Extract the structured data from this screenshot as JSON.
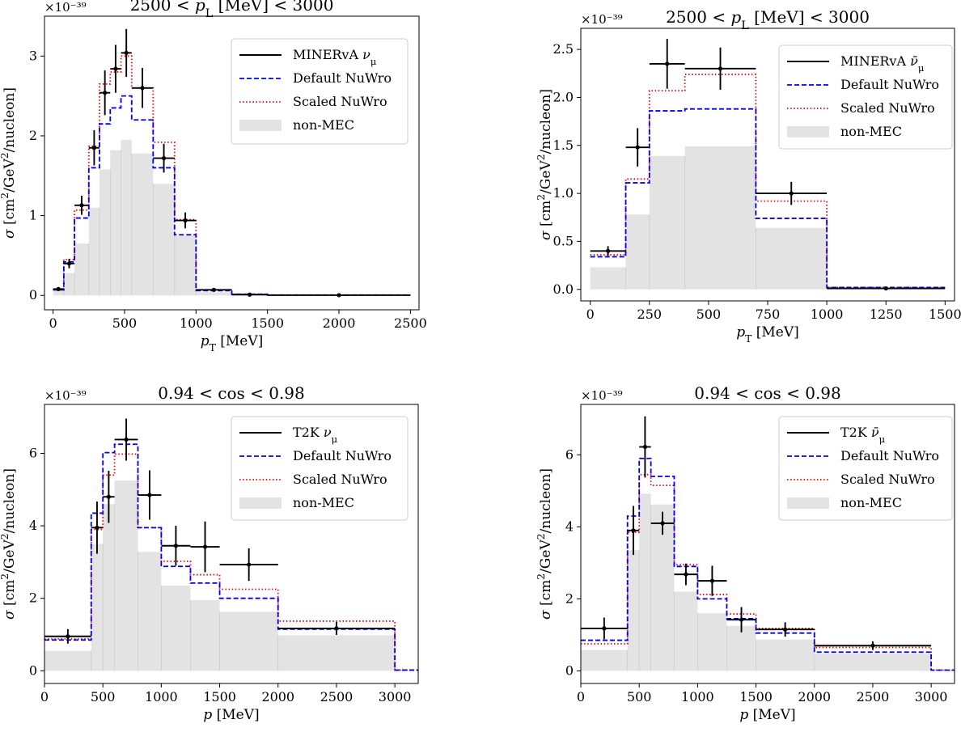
{
  "chart_data": [
    {
      "type": "step",
      "title": "2500 < p_L [MeV] < 3000",
      "xlabel": "p_T [MeV]",
      "ylabel": "σ [cm²/GeV²/nucleon]",
      "offset_text": "×10⁻³⁹",
      "xlim": [
        -60,
        2560
      ],
      "ylim": [
        -0.18,
        3.5
      ],
      "xticks": [
        0,
        500,
        1000,
        1500,
        2000,
        2500
      ],
      "xtick_labels": [
        "0",
        "500",
        "1000",
        "1500",
        "2000",
        "2500"
      ],
      "yticks": [
        0,
        1,
        2,
        3
      ],
      "ytick_labels": [
        "0",
        "1",
        "2",
        "3"
      ],
      "legend_location": "upper right",
      "legend": [
        {
          "label": "MINERvA ν_μ",
          "style": "data"
        },
        {
          "label": "Default NuWro",
          "style": "dashed"
        },
        {
          "label": "Scaled NuWro",
          "style": "dotted"
        },
        {
          "label": "non-MEC",
          "style": "fill"
        }
      ],
      "bin_edges": [
        0,
        75,
        150,
        250,
        325,
        400,
        475,
        550,
        700,
        850,
        1000,
        1250,
        1500,
        2500
      ],
      "series": [
        {
          "name": "non-MEC",
          "values": [
            0.06,
            0.28,
            0.65,
            1.1,
            1.58,
            1.82,
            1.95,
            1.78,
            1.4,
            0.75,
            0.04,
            0.01,
            0.0
          ]
        },
        {
          "name": "Default NuWro",
          "values": [
            0.07,
            0.42,
            0.97,
            1.6,
            2.15,
            2.35,
            2.5,
            2.2,
            1.6,
            0.76,
            0.06,
            0.015,
            0.005
          ]
        },
        {
          "name": "Scaled NuWro",
          "values": [
            0.07,
            0.45,
            1.07,
            1.87,
            2.65,
            2.8,
            3.0,
            2.6,
            1.92,
            0.95,
            0.07,
            0.015,
            0.005
          ]
        }
      ],
      "data_points": [
        {
          "x": 37.5,
          "y": 0.08,
          "xerr": 37.5,
          "yerr": 0.02
        },
        {
          "x": 112.5,
          "y": 0.4,
          "xerr": 37.5,
          "yerr": 0.06
        },
        {
          "x": 200,
          "y": 1.13,
          "xerr": 50,
          "yerr": 0.12
        },
        {
          "x": 287.5,
          "y": 1.85,
          "xerr": 37.5,
          "yerr": 0.22
        },
        {
          "x": 362.5,
          "y": 2.54,
          "xerr": 37.5,
          "yerr": 0.28
        },
        {
          "x": 437.5,
          "y": 2.84,
          "xerr": 37.5,
          "yerr": 0.3
        },
        {
          "x": 512.5,
          "y": 3.04,
          "xerr": 37.5,
          "yerr": 0.3
        },
        {
          "x": 625,
          "y": 2.6,
          "xerr": 75,
          "yerr": 0.25
        },
        {
          "x": 775,
          "y": 1.72,
          "xerr": 75,
          "yerr": 0.18
        },
        {
          "x": 925,
          "y": 0.94,
          "xerr": 75,
          "yerr": 0.1
        },
        {
          "x": 1125,
          "y": 0.07,
          "xerr": 125,
          "yerr": 0.02
        },
        {
          "x": 1375,
          "y": 0.01,
          "xerr": 125,
          "yerr": 0.01
        },
        {
          "x": 2000,
          "y": 0.003,
          "xerr": 500,
          "yerr": 0.005
        }
      ]
    },
    {
      "type": "step",
      "title": "2500 < p_L [MeV] < 3000",
      "xlabel": "p_T [MeV]",
      "ylabel": "σ [cm²/GeV²/nucleon]",
      "offset_text": "×10⁻³⁹",
      "xlim": [
        -40,
        1540
      ],
      "ylim": [
        -0.12,
        2.72
      ],
      "xticks": [
        0,
        250,
        500,
        750,
        1000,
        1250,
        1500
      ],
      "xtick_labels": [
        "0",
        "250",
        "500",
        "750",
        "1000",
        "1250",
        "1500"
      ],
      "yticks": [
        0,
        0.5,
        1,
        1.5,
        2,
        2.5
      ],
      "ytick_labels": [
        "0.0",
        "0.5",
        "1.0",
        "1.5",
        "2.0",
        "2.5"
      ],
      "legend_location": "upper right",
      "legend": [
        {
          "label": "MINERvA ν̄_μ",
          "style": "data"
        },
        {
          "label": "Default NuWro",
          "style": "dashed"
        },
        {
          "label": "Scaled NuWro",
          "style": "dotted"
        },
        {
          "label": "non-MEC",
          "style": "fill"
        }
      ],
      "bin_edges": [
        0,
        150,
        250,
        400,
        700,
        1000,
        1500
      ],
      "series": [
        {
          "name": "non-MEC",
          "values": [
            0.23,
            0.78,
            1.39,
            1.49,
            0.64,
            0.01
          ]
        },
        {
          "name": "Default NuWro",
          "values": [
            0.34,
            1.11,
            1.86,
            1.88,
            0.74,
            0.02
          ]
        },
        {
          "name": "Scaled NuWro",
          "values": [
            0.36,
            1.15,
            2.07,
            2.24,
            0.92,
            0.02
          ]
        }
      ],
      "data_points": [
        {
          "x": 75,
          "y": 0.4,
          "xerr": 75,
          "yerr": 0.05
        },
        {
          "x": 200,
          "y": 1.48,
          "xerr": 50,
          "yerr": 0.2
        },
        {
          "x": 325,
          "y": 2.35,
          "xerr": 75,
          "yerr": 0.26
        },
        {
          "x": 550,
          "y": 2.3,
          "xerr": 150,
          "yerr": 0.22
        },
        {
          "x": 850,
          "y": 1.0,
          "xerr": 150,
          "yerr": 0.12
        },
        {
          "x": 1250,
          "y": 0.01,
          "xerr": 250,
          "yerr": 0.005
        }
      ]
    },
    {
      "type": "step",
      "title": "0.94 < cos < 0.98",
      "xlabel": "p [MeV]",
      "ylabel": "σ [cm²/GeV²/nucleon]",
      "offset_text": "×10⁻³⁹",
      "xlim": [
        0,
        3200
      ],
      "ylim": [
        -0.35,
        7.35
      ],
      "xticks": [
        0,
        500,
        1000,
        1500,
        2000,
        2500,
        3000
      ],
      "xtick_labels": [
        "0",
        "500",
        "1000",
        "1500",
        "2000",
        "2500",
        "3000"
      ],
      "yticks": [
        0,
        2,
        4,
        6
      ],
      "ytick_labels": [
        "0",
        "2",
        "4",
        "6"
      ],
      "legend_location": "upper right",
      "legend": [
        {
          "label": "T2K ν_μ",
          "style": "data"
        },
        {
          "label": "Default NuWro",
          "style": "dashed"
        },
        {
          "label": "Scaled NuWro",
          "style": "dotted"
        },
        {
          "label": "non-MEC",
          "style": "fill"
        }
      ],
      "bin_edges": [
        0,
        400,
        500,
        600,
        800,
        1000,
        1250,
        1500,
        2000,
        3000,
        3200
      ],
      "series": [
        {
          "name": "non-MEC",
          "values": [
            0.55,
            3.5,
            4.6,
            5.25,
            3.28,
            2.35,
            1.95,
            1.63,
            0.98,
            0.01
          ]
        },
        {
          "name": "Default NuWro",
          "values": [
            0.85,
            4.35,
            6.02,
            6.25,
            3.95,
            2.88,
            2.42,
            2.0,
            1.15,
            0.02
          ]
        },
        {
          "name": "Scaled NuWro",
          "values": [
            0.88,
            3.9,
            5.4,
            5.98,
            3.95,
            3.02,
            2.65,
            2.25,
            1.37,
            0.02
          ]
        }
      ],
      "data_points": [
        {
          "x": 200,
          "y": 0.95,
          "xerr": 200,
          "yerr": 0.2
        },
        {
          "x": 450,
          "y": 3.95,
          "xerr": 50,
          "yerr": 0.72
        },
        {
          "x": 550,
          "y": 4.8,
          "xerr": 50,
          "yerr": 0.72
        },
        {
          "x": 700,
          "y": 6.38,
          "xerr": 100,
          "yerr": 0.58
        },
        {
          "x": 900,
          "y": 4.85,
          "xerr": 100,
          "yerr": 0.68
        },
        {
          "x": 1125,
          "y": 3.45,
          "xerr": 125,
          "yerr": 0.55
        },
        {
          "x": 1375,
          "y": 3.42,
          "xerr": 125,
          "yerr": 0.7
        },
        {
          "x": 1750,
          "y": 2.93,
          "xerr": 250,
          "yerr": 0.45
        },
        {
          "x": 2500,
          "y": 1.17,
          "xerr": 500,
          "yerr": 0.18
        }
      ]
    },
    {
      "type": "step",
      "title": "0.94 < cos < 0.98",
      "xlabel": "p [MeV]",
      "ylabel": "σ [cm²/GeV²/nucleon]",
      "offset_text": "×10⁻³⁹",
      "xlim": [
        0,
        3200
      ],
      "ylim": [
        -0.35,
        7.4
      ],
      "xticks": [
        0,
        500,
        1000,
        1500,
        2000,
        2500,
        3000
      ],
      "xtick_labels": [
        "0",
        "500",
        "1000",
        "1500",
        "2000",
        "2500",
        "3000"
      ],
      "yticks": [
        0,
        2,
        4,
        6
      ],
      "ytick_labels": [
        "0",
        "2",
        "4",
        "6"
      ],
      "legend_location": "upper right",
      "legend": [
        {
          "label": "T2K ν̄_μ",
          "style": "data"
        },
        {
          "label": "Default NuWro",
          "style": "dashed"
        },
        {
          "label": "Scaled NuWro",
          "style": "dotted"
        },
        {
          "label": "non-MEC",
          "style": "fill"
        }
      ],
      "bin_edges": [
        0,
        400,
        500,
        600,
        800,
        1000,
        1250,
        1500,
        2000,
        3000,
        3200
      ],
      "series": [
        {
          "name": "non-MEC",
          "values": [
            0.58,
            3.35,
            4.92,
            4.62,
            2.2,
            1.6,
            1.25,
            0.87,
            0.48,
            0.01
          ]
        },
        {
          "name": "Default NuWro",
          "values": [
            0.85,
            4.3,
            5.9,
            5.4,
            2.9,
            2.0,
            1.45,
            1.05,
            0.52,
            0.02
          ]
        },
        {
          "name": "Scaled NuWro",
          "values": [
            0.75,
            3.85,
            5.45,
            5.15,
            2.95,
            2.12,
            1.58,
            1.18,
            0.65,
            0.02
          ]
        }
      ],
      "data_points": [
        {
          "x": 200,
          "y": 1.18,
          "xerr": 200,
          "yerr": 0.3
        },
        {
          "x": 450,
          "y": 3.9,
          "xerr": 50,
          "yerr": 0.68
        },
        {
          "x": 550,
          "y": 6.22,
          "xerr": 50,
          "yerr": 0.85
        },
        {
          "x": 700,
          "y": 4.1,
          "xerr": 100,
          "yerr": 0.32
        },
        {
          "x": 900,
          "y": 2.68,
          "xerr": 100,
          "yerr": 0.3
        },
        {
          "x": 1125,
          "y": 2.5,
          "xerr": 125,
          "yerr": 0.42
        },
        {
          "x": 1375,
          "y": 1.42,
          "xerr": 125,
          "yerr": 0.35
        },
        {
          "x": 1750,
          "y": 1.15,
          "xerr": 250,
          "yerr": 0.2
        },
        {
          "x": 2500,
          "y": 0.7,
          "xerr": 500,
          "yerr": 0.12
        }
      ]
    }
  ],
  "colors": {
    "data": "#000000",
    "default_nuwro": "#0000ee",
    "scaled_nuwro": "#ee0000",
    "non_mec": "#e3e3e3",
    "bin_divider": "#c8c8c8",
    "legend_border": "#cccccc"
  }
}
